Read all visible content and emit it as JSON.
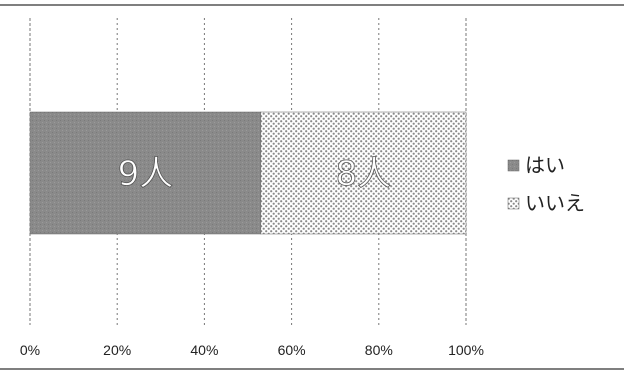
{
  "chart_data": {
    "type": "bar",
    "orientation": "horizontal",
    "stacked": "percent",
    "title": "",
    "xlabel": "",
    "ylabel": "",
    "xlim": [
      0,
      100
    ],
    "x_ticks": [
      "0%",
      "20%",
      "40%",
      "60%",
      "80%",
      "100%"
    ],
    "x_tick_values": [
      0,
      20,
      40,
      60,
      80,
      100
    ],
    "grid": "vertical",
    "legend_position": "right",
    "categories": [
      ""
    ],
    "series": [
      {
        "name": "はい",
        "values": [
          9
        ],
        "data_label": "9人",
        "color": "#8c8c8c",
        "fill": "solid"
      },
      {
        "name": "いいえ",
        "values": [
          8
        ],
        "data_label": "8人",
        "color": "#c8c8c8",
        "fill": "dotted"
      }
    ]
  }
}
